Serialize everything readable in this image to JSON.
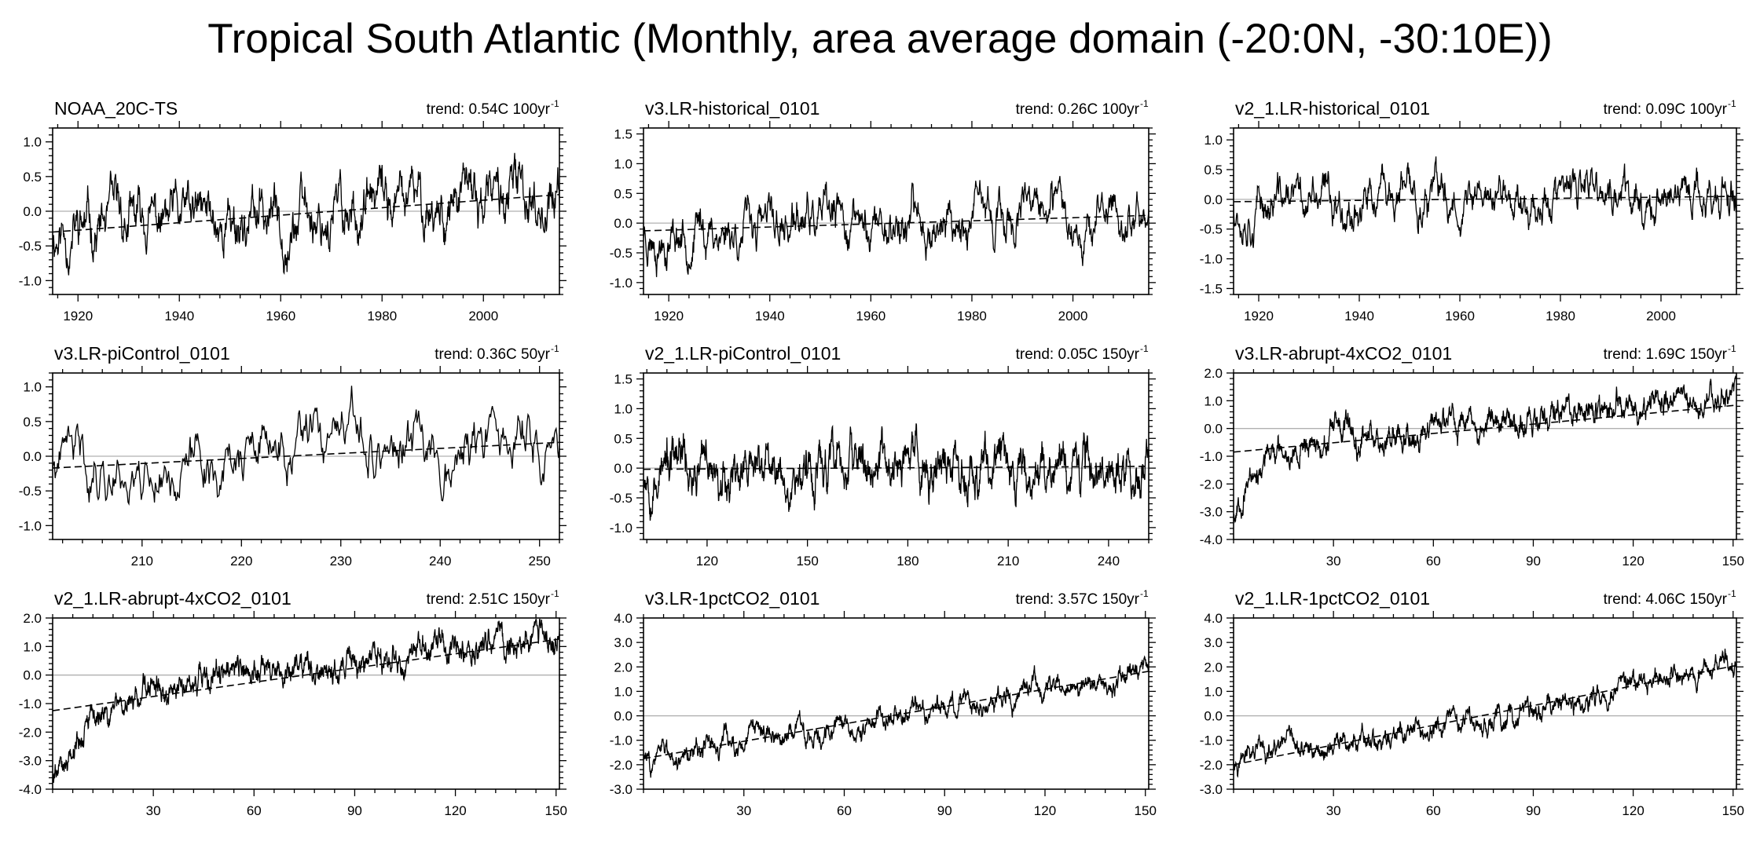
{
  "figure": {
    "title": "Tropical South Atlantic (Monthly, area average domain (-20:0N, -30:10E))"
  },
  "colors": {
    "series": "#000000",
    "zero_line": "#b0b0b0",
    "frame": "#000000"
  },
  "chart_data": [
    {
      "type": "line",
      "name": "NOAA_20C-TS",
      "trend": "trend: 0.54C 100yr",
      "xlim": [
        1915,
        2015
      ],
      "ylim": [
        -1.2,
        1.2
      ],
      "noise": 0.42,
      "seed": 11,
      "xticks": [
        1920,
        1940,
        1960,
        1980,
        2000
      ],
      "xticklabels": [
        "1920",
        "1940",
        "1960",
        "1980",
        "2000"
      ],
      "yticks": [
        -1.0,
        -0.5,
        0.0,
        0.5,
        1.0
      ],
      "yticklabels": [
        "-1.0",
        "-0.5",
        "0.0",
        "0.5",
        "1.0"
      ],
      "trend_line": {
        "x": [
          1915,
          2015
        ],
        "y": [
          -0.3,
          0.24
        ]
      }
    },
    {
      "type": "line",
      "name": "v3.LR-historical_0101",
      "trend": "trend: 0.26C 100yr",
      "xlim": [
        1915,
        2015
      ],
      "ylim": [
        -1.2,
        1.6
      ],
      "noise": 0.4,
      "seed": 23,
      "xticks": [
        1920,
        1940,
        1960,
        1980,
        2000
      ],
      "xticklabels": [
        "1920",
        "1940",
        "1960",
        "1980",
        "2000"
      ],
      "yticks": [
        -1.0,
        -0.5,
        0.0,
        0.5,
        1.0,
        1.5
      ],
      "yticklabels": [
        "-1.0",
        "-0.5",
        "0.0",
        "0.5",
        "1.0",
        "1.5"
      ],
      "trend_line": {
        "x": [
          1915,
          2015
        ],
        "y": [
          -0.13,
          0.13
        ]
      }
    },
    {
      "type": "line",
      "name": "v2_1.LR-historical_0101",
      "trend": "trend: 0.09C 100yr",
      "xlim": [
        1915,
        2015
      ],
      "ylim": [
        -1.6,
        1.2
      ],
      "noise": 0.38,
      "seed": 37,
      "xticks": [
        1920,
        1940,
        1960,
        1980,
        2000
      ],
      "xticklabels": [
        "1920",
        "1940",
        "1960",
        "1980",
        "2000"
      ],
      "yticks": [
        -1.5,
        -1.0,
        -0.5,
        0.0,
        0.5,
        1.0
      ],
      "yticklabels": [
        "-1.5",
        "-1.0",
        "-0.5",
        "0.0",
        "0.5",
        "1.0"
      ],
      "trend_line": {
        "x": [
          1915,
          2015
        ],
        "y": [
          -0.04,
          0.05
        ]
      }
    },
    {
      "type": "line",
      "name": "v3.LR-piControl_0101",
      "trend": "trend: 0.36C 50yr",
      "xlim": [
        201,
        252
      ],
      "ylim": [
        -1.2,
        1.2
      ],
      "noise": 0.45,
      "seed": 41,
      "xticks": [
        210,
        220,
        230,
        240,
        250
      ],
      "xticklabels": [
        "210",
        "220",
        "230",
        "240",
        "250"
      ],
      "yticks": [
        -1.0,
        -0.5,
        0.0,
        0.5,
        1.0
      ],
      "yticklabels": [
        "-1.0",
        "-0.5",
        "0.0",
        "0.5",
        "1.0"
      ],
      "trend_line": {
        "x": [
          201,
          252
        ],
        "y": [
          -0.17,
          0.2
        ]
      }
    },
    {
      "type": "line",
      "name": "v2_1.LR-piControl_0101",
      "trend": "trend: 0.05C 150yr",
      "xlim": [
        101,
        252
      ],
      "ylim": [
        -1.2,
        1.6
      ],
      "noise": 0.4,
      "seed": 53,
      "xticks": [
        120,
        150,
        180,
        210,
        240
      ],
      "xticklabels": [
        "120",
        "150",
        "180",
        "210",
        "240"
      ],
      "yticks": [
        -1.0,
        -0.5,
        0.0,
        0.5,
        1.0,
        1.5
      ],
      "yticklabels": [
        "-1.0",
        "-0.5",
        "0.0",
        "0.5",
        "1.0",
        "1.5"
      ],
      "trend_line": {
        "x": [
          101,
          252
        ],
        "y": [
          -0.02,
          0.03
        ]
      }
    },
    {
      "type": "line",
      "name": "v3.LR-abrupt-4xCO2_0101",
      "trend": "trend: 1.69C 150yr",
      "xlim": [
        0,
        151
      ],
      "ylim": [
        -4.0,
        2.0
      ],
      "noise": 0.5,
      "seed": 67,
      "shape": "abrupt",
      "ramp_start": -3.0,
      "ramp_tau": 8,
      "xticks": [
        30,
        60,
        90,
        120,
        150
      ],
      "xticklabels": [
        "30",
        "60",
        "90",
        "120",
        "150"
      ],
      "yticks": [
        -4.0,
        -3.0,
        -2.0,
        -1.0,
        0.0,
        1.0,
        2.0
      ],
      "yticklabels": [
        "-4.0",
        "-3.0",
        "-2.0",
        "-1.0",
        "0.0",
        "1.0",
        "2.0"
      ],
      "trend_line": {
        "x": [
          0,
          151
        ],
        "y": [
          -0.85,
          0.84
        ]
      }
    },
    {
      "type": "line",
      "name": "v2_1.LR-abrupt-4xCO2_0101",
      "trend": "trend: 2.51C 150yr",
      "xlim": [
        0,
        151
      ],
      "ylim": [
        -4.0,
        2.0
      ],
      "noise": 0.5,
      "seed": 79,
      "shape": "abrupt",
      "ramp_start": -3.6,
      "ramp_tau": 10,
      "xticks": [
        30,
        60,
        90,
        120,
        150
      ],
      "xticklabels": [
        "30",
        "60",
        "90",
        "120",
        "150"
      ],
      "yticks": [
        -4.0,
        -3.0,
        -2.0,
        -1.0,
        0.0,
        1.0,
        2.0
      ],
      "yticklabels": [
        "-4.0",
        "-3.0",
        "-2.0",
        "-1.0",
        "0.0",
        "1.0",
        "2.0"
      ],
      "trend_line": {
        "x": [
          0,
          151
        ],
        "y": [
          -1.25,
          1.26
        ]
      }
    },
    {
      "type": "line",
      "name": "v3.LR-1pctCO2_0101",
      "trend": "trend: 3.57C 150yr",
      "xlim": [
        0,
        151
      ],
      "ylim": [
        -3.0,
        4.0
      ],
      "noise": 0.45,
      "seed": 83,
      "xticks": [
        30,
        60,
        90,
        120,
        150
      ],
      "xticklabels": [
        "30",
        "60",
        "90",
        "120",
        "150"
      ],
      "yticks": [
        -3.0,
        -2.0,
        -1.0,
        0.0,
        1.0,
        2.0,
        3.0,
        4.0
      ],
      "yticklabels": [
        "-3.0",
        "-2.0",
        "-1.0",
        "0.0",
        "1.0",
        "2.0",
        "3.0",
        "4.0"
      ],
      "trend_line": {
        "x": [
          0,
          151
        ],
        "y": [
          -1.75,
          1.82
        ]
      }
    },
    {
      "type": "line",
      "name": "v2_1.LR-1pctCO2_0101",
      "trend": "trend: 4.06C 150yr",
      "xlim": [
        0,
        151
      ],
      "ylim": [
        -3.0,
        4.0
      ],
      "noise": 0.45,
      "seed": 97,
      "shape": "accel",
      "xticks": [
        30,
        60,
        90,
        120,
        150
      ],
      "xticklabels": [
        "30",
        "60",
        "90",
        "120",
        "150"
      ],
      "yticks": [
        -3.0,
        -2.0,
        -1.0,
        0.0,
        1.0,
        2.0,
        3.0,
        4.0
      ],
      "yticklabels": [
        "-3.0",
        "-2.0",
        "-1.0",
        "0.0",
        "1.0",
        "2.0",
        "3.0",
        "4.0"
      ],
      "trend_line": {
        "x": [
          0,
          151
        ],
        "y": [
          -2.0,
          2.06
        ]
      }
    }
  ]
}
